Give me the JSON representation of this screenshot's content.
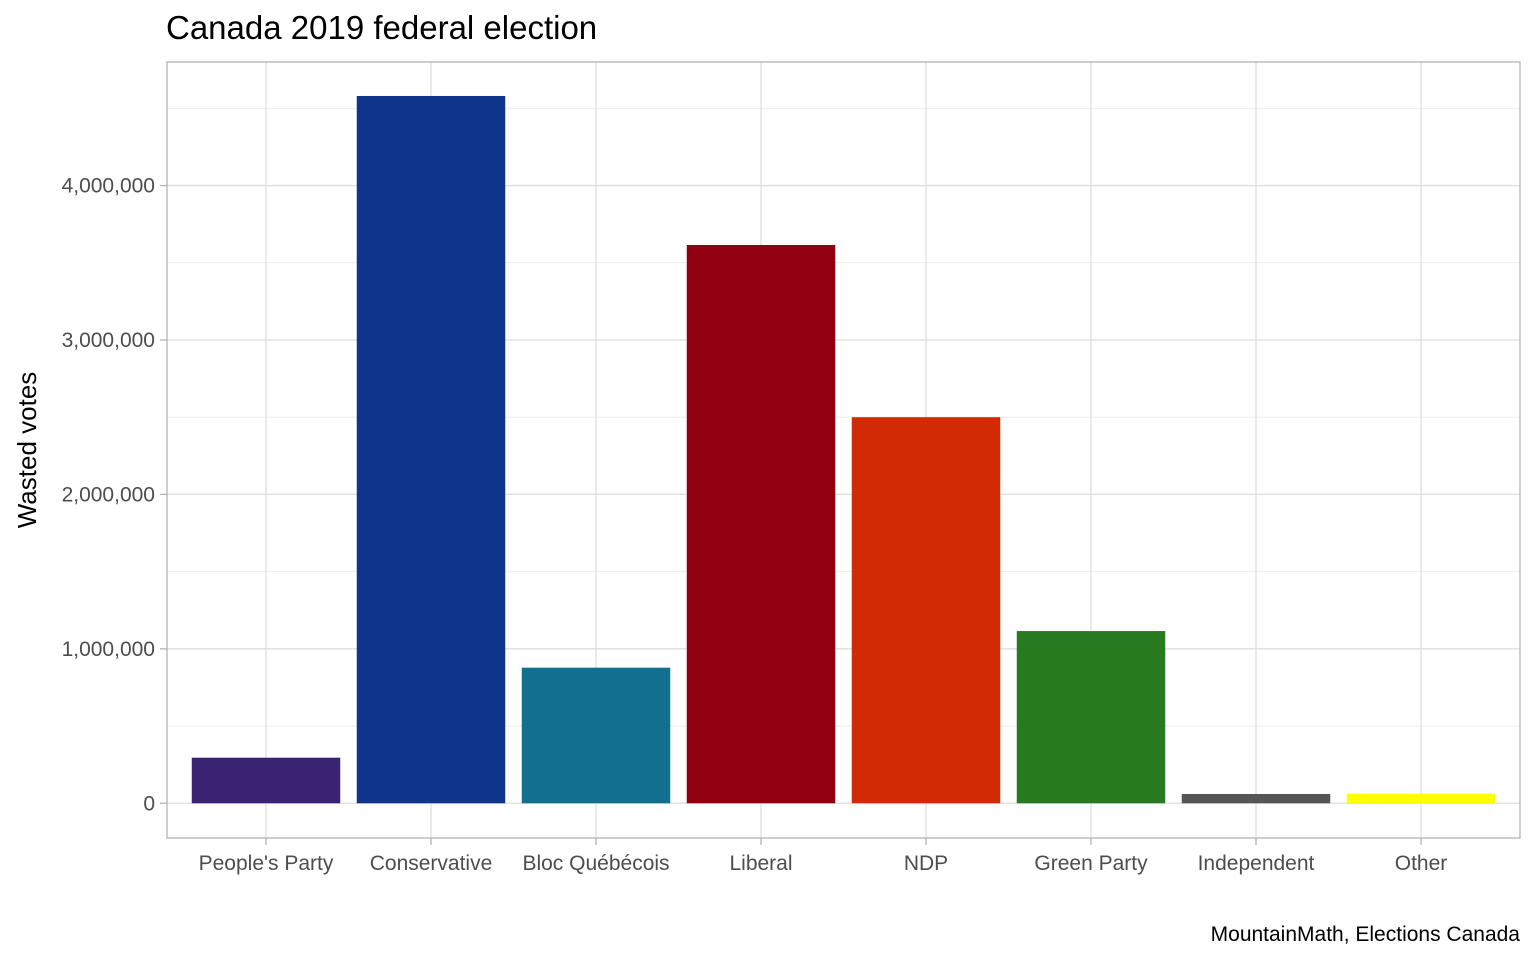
{
  "chart_data": {
    "type": "bar",
    "title": "Canada 2019 federal election",
    "ylabel": "Wasted votes",
    "xlabel": "",
    "caption": "MountainMath, Elections Canada",
    "categories": [
      "People's Party",
      "Conservative",
      "Bloc Québécois",
      "Liberal",
      "NDP",
      "Green Party",
      "Independent",
      "Other"
    ],
    "values": [
      295000,
      4580000,
      878000,
      3615000,
      2500000,
      1115000,
      60000,
      62000
    ],
    "colors": [
      "#3b2373",
      "#0e358a",
      "#12708f",
      "#910010",
      "#d12a05",
      "#277a1f",
      "#555555",
      "#ffff00"
    ],
    "ylim": [
      -225000,
      4800000
    ],
    "yticks": [
      0,
      1000000,
      2000000,
      3000000,
      4000000
    ],
    "ytick_labels": [
      "0",
      "1,000,000",
      "2,000,000",
      "3,000,000",
      "4,000,000"
    ],
    "grid": true,
    "legend": "none"
  }
}
